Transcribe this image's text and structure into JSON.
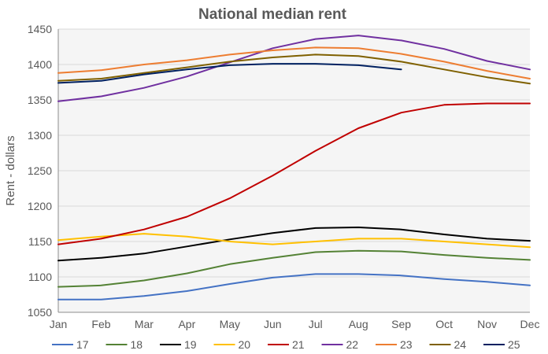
{
  "chart_data": {
    "type": "line",
    "title": "National median rent",
    "xlabel": "",
    "ylabel": "Rent - dollars",
    "categories": [
      "Jan",
      "Feb",
      "Mar",
      "Apr",
      "May",
      "Jun",
      "Jul",
      "Aug",
      "Sep",
      "Oct",
      "Nov",
      "Dec"
    ],
    "ylim": [
      1050,
      1450
    ],
    "yticks": [
      1050,
      1100,
      1150,
      1200,
      1250,
      1300,
      1350,
      1400,
      1450
    ],
    "grid": true,
    "legend_position": "bottom",
    "series": [
      {
        "name": "17",
        "color": "#4472c4",
        "values": [
          1068,
          1068,
          1073,
          1080,
          1090,
          1099,
          1104,
          1104,
          1102,
          1097,
          1093,
          1088
        ]
      },
      {
        "name": "18",
        "color": "#548235",
        "values": [
          1086,
          1088,
          1095,
          1105,
          1118,
          1127,
          1135,
          1137,
          1136,
          1131,
          1127,
          1124
        ]
      },
      {
        "name": "19",
        "color": "#000000",
        "values": [
          1123,
          1127,
          1133,
          1143,
          1153,
          1162,
          1169,
          1170,
          1167,
          1160,
          1154,
          1151
        ]
      },
      {
        "name": "20",
        "color": "#ffc000",
        "values": [
          1152,
          1157,
          1161,
          1157,
          1150,
          1146,
          1150,
          1154,
          1154,
          1150,
          1146,
          1142
        ]
      },
      {
        "name": "21",
        "color": "#c00000",
        "values": [
          1146,
          1154,
          1167,
          1185,
          1211,
          1243,
          1278,
          1310,
          1332,
          1343,
          1345,
          1345
        ]
      },
      {
        "name": "22",
        "color": "#7030a0",
        "values": [
          1348,
          1355,
          1367,
          1383,
          1403,
          1423,
          1436,
          1441,
          1434,
          1422,
          1405,
          1393
        ]
      },
      {
        "name": "23",
        "color": "#ed7d31",
        "values": [
          1388,
          1392,
          1400,
          1406,
          1414,
          1420,
          1424,
          1423,
          1415,
          1404,
          1391,
          1380
        ]
      },
      {
        "name": "24",
        "color": "#7f6000",
        "values": [
          1377,
          1380,
          1388,
          1396,
          1404,
          1410,
          1414,
          1412,
          1404,
          1393,
          1382,
          1373
        ]
      },
      {
        "name": "25",
        "color": "#002060",
        "values": [
          1374,
          1377,
          1386,
          1393,
          1399,
          1401,
          1401,
          1399,
          1393,
          null,
          null,
          null
        ]
      }
    ],
    "colors": {
      "plot_background": "#f5f5f5",
      "grid": "#d9d9d9",
      "axis": "#8c8c8c",
      "text": "#595959"
    }
  }
}
